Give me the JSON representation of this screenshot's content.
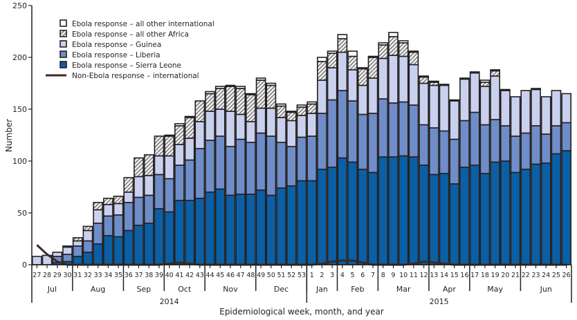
{
  "chart_data": {
    "type": "bar",
    "stacked": true,
    "ylabel": "Number",
    "xlabel": "Epidemiological week, month, and year",
    "ylim": [
      0,
      250
    ],
    "yticks": [
      0,
      50,
      100,
      150,
      200,
      250
    ],
    "grid": false,
    "legend_placement": "top-left",
    "categories": [
      "27",
      "28",
      "29",
      "30",
      "31",
      "32",
      "33",
      "34",
      "35",
      "36",
      "37",
      "38",
      "39",
      "40",
      "41",
      "42",
      "43",
      "44",
      "45",
      "46",
      "47",
      "48",
      "49",
      "50",
      "51",
      "52",
      "53",
      "1",
      "2",
      "3",
      "4",
      "5",
      "6",
      "7",
      "8",
      "9",
      "10",
      "11",
      "12",
      "13",
      "14",
      "15",
      "16",
      "17",
      "18",
      "19",
      "20",
      "21",
      "22",
      "23",
      "24",
      "25",
      "26"
    ],
    "months": [
      {
        "label": "Jul",
        "weeks": 4
      },
      {
        "label": "Aug",
        "weeks": 5
      },
      {
        "label": "Sep",
        "weeks": 4
      },
      {
        "label": "Oct",
        "weeks": 4
      },
      {
        "label": "Nov",
        "weeks": 5
      },
      {
        "label": "Dec",
        "weeks": 5
      },
      {
        "label": "Jan",
        "weeks": 3
      },
      {
        "label": "Feb",
        "weeks": 4
      },
      {
        "label": "Mar",
        "weeks": 5
      },
      {
        "label": "Apr",
        "weeks": 4
      },
      {
        "label": "May",
        "weeks": 5
      },
      {
        "label": "Jun",
        "weeks": 5
      }
    ],
    "years": [
      {
        "label": "2014",
        "weeks": 27
      },
      {
        "label": "2015",
        "weeks": 26
      }
    ],
    "series": [
      {
        "name": "Ebola response – Sierra Leone",
        "color": "#0b5fa5",
        "values": [
          0,
          0,
          2,
          3,
          8,
          12,
          20,
          28,
          27,
          33,
          38,
          40,
          54,
          51,
          62,
          62,
          64,
          70,
          73,
          67,
          68,
          68,
          72,
          67,
          74,
          76,
          81,
          81,
          92,
          94,
          103,
          99,
          92,
          89,
          104,
          104,
          105,
          104,
          96,
          87,
          88,
          78,
          94,
          96,
          88,
          99,
          100,
          89,
          92,
          97,
          98,
          107,
          110
        ]
      },
      {
        "name": "Ebola response – Liberia",
        "color": "#6f8dc9",
        "values": [
          0,
          0,
          6,
          7,
          10,
          11,
          20,
          19,
          21,
          27,
          27,
          27,
          33,
          32,
          34,
          39,
          48,
          50,
          51,
          47,
          53,
          50,
          55,
          57,
          44,
          38,
          42,
          43,
          54,
          65,
          65,
          59,
          53,
          57,
          56,
          52,
          52,
          50,
          39,
          45,
          41,
          43,
          45,
          51,
          47,
          41,
          34,
          35,
          35,
          37,
          28,
          27,
          27
        ]
      },
      {
        "name": "Ebola response – Guinea",
        "color": "#c9d1ee",
        "values": [
          8,
          9,
          4,
          7,
          5,
          10,
          13,
          11,
          11,
          10,
          20,
          19,
          18,
          22,
          20,
          21,
          26,
          28,
          26,
          34,
          24,
          20,
          24,
          27,
          24,
          25,
          21,
          22,
          32,
          31,
          37,
          30,
          28,
          34,
          39,
          46,
          44,
          39,
          40,
          41,
          44,
          37,
          40,
          38,
          37,
          42,
          34,
          38,
          41,
          35,
          36,
          34,
          28
        ]
      },
      {
        "name": "Ebola response – all other Africa",
        "color": "hatch",
        "values": [
          0,
          0,
          0,
          0,
          3,
          4,
          7,
          6,
          7,
          14,
          18,
          20,
          19,
          19,
          18,
          20,
          20,
          17,
          20,
          24,
          25,
          26,
          27,
          22,
          11,
          8,
          8,
          9,
          18,
          14,
          13,
          13,
          16,
          20,
          13,
          18,
          13,
          12,
          6,
          3,
          0,
          0,
          0,
          0,
          4,
          5,
          0,
          0,
          0,
          0,
          0,
          0,
          0
        ]
      },
      {
        "name": "Ebola response – all other international",
        "color": "#ffffff",
        "values": [
          0,
          0,
          0,
          1,
          0,
          0,
          0,
          0,
          0,
          0,
          0,
          0,
          0,
          1,
          2,
          1,
          0,
          2,
          2,
          1,
          2,
          1,
          2,
          2,
          2,
          1,
          2,
          2,
          4,
          2,
          4,
          5,
          1,
          1,
          2,
          4,
          2,
          1,
          1,
          1,
          1,
          1,
          1,
          1,
          2,
          1,
          1,
          0,
          0,
          1,
          0,
          0,
          0
        ]
      }
    ],
    "line_series": {
      "name": "Non-Ebola response – international",
      "color": "#3a2a26",
      "values": [
        19,
        10,
        3,
        0,
        0,
        0,
        0,
        0,
        0,
        0,
        0,
        0,
        0,
        1,
        2,
        1,
        0,
        0,
        0,
        0,
        0,
        0,
        0,
        0,
        0,
        0,
        0,
        0,
        1,
        3,
        4,
        4,
        2,
        0,
        0,
        0,
        0,
        1,
        3,
        2,
        1,
        0,
        0,
        0,
        0,
        0,
        0,
        0,
        0,
        0,
        0,
        0,
        0
      ]
    },
    "legend_order": [
      4,
      3,
      2,
      1,
      0
    ]
  }
}
